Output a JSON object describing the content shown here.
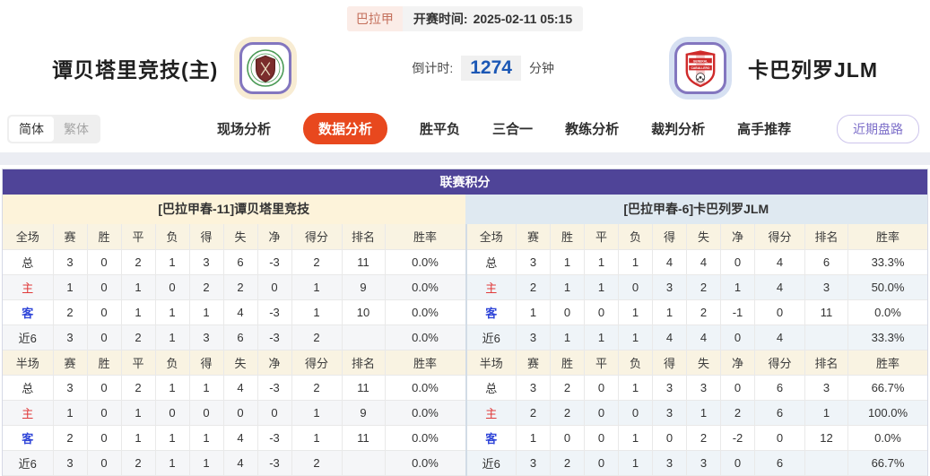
{
  "header": {
    "league_badge": "巴拉甲",
    "kickoff_label": "开赛时间:",
    "kickoff_time": "2025-02-11 05:15",
    "home_team": "谭贝塔里竞技(主)",
    "away_team": "卡巴列罗JLM",
    "countdown_label": "倒计时:",
    "countdown_value": "1274",
    "countdown_unit": "分钟"
  },
  "nav": {
    "lang_simplified": "简体",
    "lang_traditional": "繁体",
    "tabs": [
      {
        "label": "现场分析",
        "active": false
      },
      {
        "label": "数据分析",
        "active": true
      },
      {
        "label": "胜平负",
        "active": false
      },
      {
        "label": "三合一",
        "active": false
      },
      {
        "label": "教练分析",
        "active": false
      },
      {
        "label": "裁判分析",
        "active": false
      },
      {
        "label": "高手推荐",
        "active": false
      }
    ],
    "recent_odds_button": "近期盘路"
  },
  "league_table": {
    "title": "联赛积分",
    "home_subtitle": "[巴拉甲春-11]谭贝塔里竞技",
    "away_subtitle": "[巴拉甲春-6]卡巴列罗JLM",
    "columns_full": [
      "全场",
      "赛",
      "胜",
      "平",
      "负",
      "得",
      "失",
      "净",
      "得分",
      "排名",
      "胜率"
    ],
    "columns_half": [
      "半场",
      "赛",
      "胜",
      "平",
      "负",
      "得",
      "失",
      "净",
      "得分",
      "排名",
      "胜率"
    ],
    "home_full": [
      [
        "总",
        "3",
        "0",
        "2",
        "1",
        "3",
        "6",
        "-3",
        "2",
        "11",
        "0.0%"
      ],
      [
        "主",
        "1",
        "0",
        "1",
        "0",
        "2",
        "2",
        "0",
        "1",
        "9",
        "0.0%"
      ],
      [
        "客",
        "2",
        "0",
        "1",
        "1",
        "1",
        "4",
        "-3",
        "1",
        "10",
        "0.0%"
      ],
      [
        "近6",
        "3",
        "0",
        "2",
        "1",
        "3",
        "6",
        "-3",
        "2",
        "",
        "0.0%"
      ]
    ],
    "home_half": [
      [
        "总",
        "3",
        "0",
        "2",
        "1",
        "1",
        "4",
        "-3",
        "2",
        "11",
        "0.0%"
      ],
      [
        "主",
        "1",
        "0",
        "1",
        "0",
        "0",
        "0",
        "0",
        "1",
        "9",
        "0.0%"
      ],
      [
        "客",
        "2",
        "0",
        "1",
        "1",
        "1",
        "4",
        "-3",
        "1",
        "11",
        "0.0%"
      ],
      [
        "近6",
        "3",
        "0",
        "2",
        "1",
        "1",
        "4",
        "-3",
        "2",
        "",
        "0.0%"
      ]
    ],
    "away_full": [
      [
        "总",
        "3",
        "1",
        "1",
        "1",
        "4",
        "4",
        "0",
        "4",
        "6",
        "33.3%"
      ],
      [
        "主",
        "2",
        "1",
        "1",
        "0",
        "3",
        "2",
        "1",
        "4",
        "3",
        "50.0%"
      ],
      [
        "客",
        "1",
        "0",
        "0",
        "1",
        "1",
        "2",
        "-1",
        "0",
        "11",
        "0.0%"
      ],
      [
        "近6",
        "3",
        "1",
        "1",
        "1",
        "4",
        "4",
        "0",
        "4",
        "",
        "33.3%"
      ]
    ],
    "away_half": [
      [
        "总",
        "3",
        "2",
        "0",
        "1",
        "3",
        "3",
        "0",
        "6",
        "3",
        "66.7%"
      ],
      [
        "主",
        "2",
        "2",
        "0",
        "0",
        "3",
        "1",
        "2",
        "6",
        "1",
        "100.0%"
      ],
      [
        "客",
        "1",
        "0",
        "0",
        "1",
        "0",
        "2",
        "-2",
        "0",
        "12",
        "0.0%"
      ],
      [
        "近6",
        "3",
        "2",
        "0",
        "1",
        "3",
        "3",
        "0",
        "6",
        "",
        "66.7%"
      ]
    ]
  },
  "colors": {
    "table_header_purple": "#4f4498",
    "active_tab_orange": "#e8481e",
    "home_subheader_cream": "#fdf3da",
    "away_subheader_blue": "#dfe9f1",
    "home_row_label_red": "#e03a3a",
    "away_row_label_blue": "#2f45d8",
    "countdown_blue": "#1b57b5",
    "recent_btn_purple": "#7d6fc9"
  }
}
